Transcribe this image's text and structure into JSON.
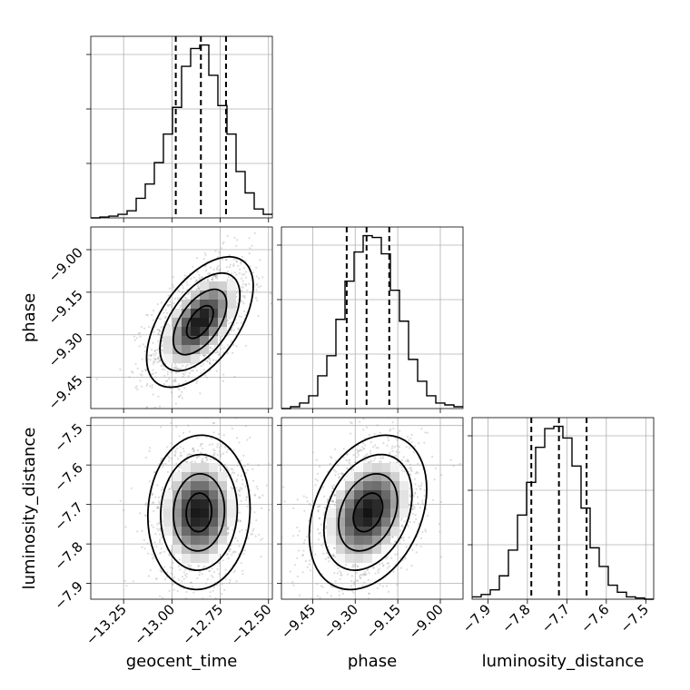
{
  "chart_data": {
    "type": "corner",
    "parameters": [
      "geocent_time",
      "phase",
      "luminosity_distance"
    ],
    "grid": true,
    "quantiles": [
      0.16,
      0.5,
      0.84
    ],
    "axes": {
      "geocent_time": {
        "range": [
          -13.42,
          -12.48
        ],
        "ticks": [
          -13.25,
          -13.0,
          -12.75,
          -12.5
        ],
        "tick_labels": [
          "−13.25",
          "−13.00",
          "−12.75",
          "−12.50"
        ]
      },
      "phase": {
        "range": [
          -9.56,
          -8.92
        ],
        "ticks": [
          -9.45,
          -9.3,
          -9.15,
          -9.0
        ],
        "tick_labels": [
          "−9.45",
          "−9.30",
          "−9.15",
          "−9.00"
        ]
      },
      "luminosity_distance": {
        "range": [
          -7.94,
          -7.48
        ],
        "ticks": [
          -7.9,
          -7.8,
          -7.7,
          -7.6,
          -7.5
        ],
        "tick_labels": [
          "−7.9",
          "−7.8",
          "−7.7",
          "−7.6",
          "−7.5"
        ]
      }
    },
    "diagonal": [
      {
        "parameter": "geocent_time",
        "bins": [
          -13.42,
          -13.373,
          -13.326,
          -13.279,
          -13.232,
          -13.185,
          -13.138,
          -13.091,
          -13.044,
          -12.997,
          -12.95,
          -12.903,
          -12.856,
          -12.809,
          -12.762,
          -12.715,
          -12.668,
          -12.621,
          -12.574,
          -12.527,
          -12.48
        ],
        "counts": [
          0,
          0.005,
          0.01,
          0.02,
          0.04,
          0.11,
          0.19,
          0.31,
          0.47,
          0.62,
          0.85,
          0.95,
          0.97,
          0.8,
          0.63,
          0.47,
          0.26,
          0.14,
          0.05,
          0.02
        ],
        "quantile_values": [
          -12.98,
          -12.85,
          -12.72
        ]
      },
      {
        "parameter": "phase",
        "bins": [
          -9.56,
          -9.528,
          -9.496,
          -9.464,
          -9.432,
          -9.4,
          -9.368,
          -9.336,
          -9.304,
          -9.272,
          -9.24,
          -9.208,
          -9.176,
          -9.144,
          -9.112,
          -9.08,
          -9.048,
          -9.016,
          -8.984,
          -8.952,
          -8.92
        ],
        "counts": [
          0,
          0.01,
          0.03,
          0.07,
          0.18,
          0.29,
          0.49,
          0.7,
          0.86,
          0.95,
          0.94,
          0.85,
          0.65,
          0.48,
          0.27,
          0.15,
          0.07,
          0.03,
          0.02,
          0.01
        ],
        "quantile_values": [
          -9.33,
          -9.26,
          -9.18
        ]
      },
      {
        "parameter": "luminosity_distance",
        "bins": [
          -7.94,
          -7.917,
          -7.894,
          -7.871,
          -7.848,
          -7.825,
          -7.802,
          -7.779,
          -7.756,
          -7.733,
          -7.71,
          -7.687,
          -7.664,
          -7.641,
          -7.618,
          -7.595,
          -7.572,
          -7.549,
          -7.526,
          -7.503,
          -7.48
        ],
        "counts": [
          0.01,
          0.02,
          0.04,
          0.1,
          0.21,
          0.36,
          0.5,
          0.65,
          0.73,
          0.74,
          0.69,
          0.57,
          0.39,
          0.22,
          0.14,
          0.06,
          0.03,
          0.01,
          0.005,
          0
        ],
        "quantile_values": [
          -7.79,
          -7.72,
          -7.65
        ]
      }
    ],
    "scatter_2d": [
      {
        "x": "geocent_time",
        "y": "phase",
        "center": [
          -12.855,
          -9.255
        ],
        "sd": [
          0.12,
          0.1
        ],
        "correlation": 0.55
      },
      {
        "x": "geocent_time",
        "y": "luminosity_distance",
        "center": [
          -12.86,
          -7.72
        ],
        "sd": [
          0.115,
          0.085
        ],
        "correlation": 0.05
      },
      {
        "x": "phase",
        "y": "luminosity_distance",
        "center": [
          -9.255,
          -7.72
        ],
        "sd": [
          0.09,
          0.085
        ],
        "correlation": 0.3
      }
    ],
    "contour_levels_sigma": [
      0.5,
      1.0,
      1.5,
      2.0
    ]
  }
}
